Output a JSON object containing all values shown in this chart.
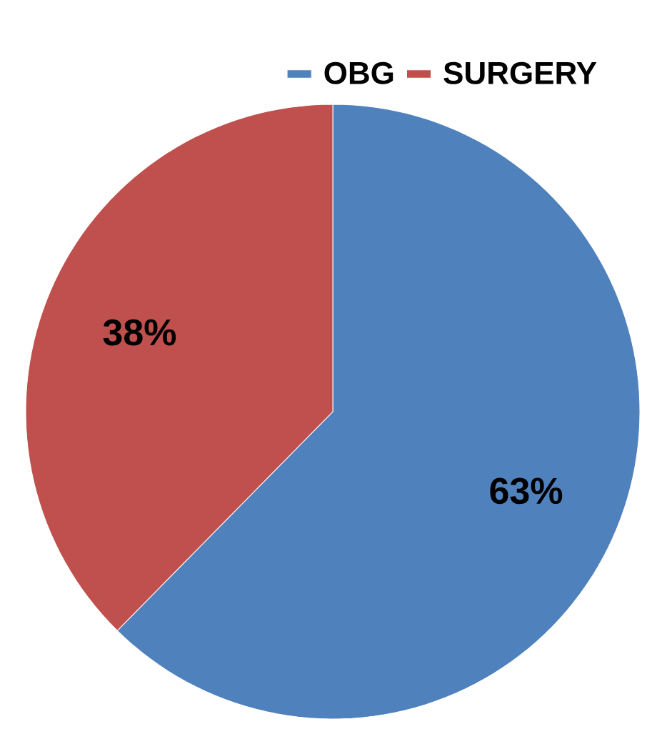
{
  "chart_data": {
    "type": "pie",
    "categories": [
      "OBG",
      "SURGERY"
    ],
    "values": [
      63,
      38
    ],
    "colors": [
      "#4f81bd",
      "#c0504d"
    ],
    "value_labels": [
      "63%",
      "38%"
    ],
    "legend": "top"
  }
}
